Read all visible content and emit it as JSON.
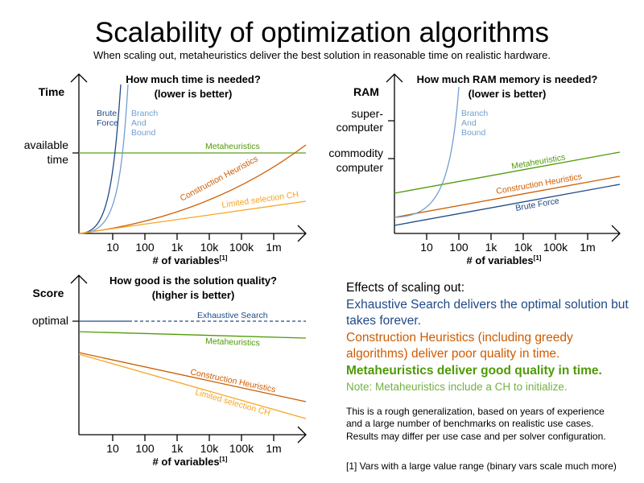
{
  "title": "Scalability of optimization algorithms",
  "subtitle": "When scaling out, metaheuristics deliver the best solution in reasonable time on realistic hardware.",
  "colors": {
    "exhaustive": "#204a87",
    "branch_and_bound": "#729fcf",
    "metaheuristics": "#4e9a06",
    "construction": "#ce5c00",
    "limited": "#f5a623"
  },
  "x_ticks": [
    "10",
    "100",
    "1k",
    "10k",
    "100k",
    "1m"
  ],
  "x_label": "# of variables",
  "x_label_sup": "[1]",
  "time_chart": {
    "title1": "How much time is needed?",
    "title2": "(lower is better)",
    "ylabel": "Time",
    "level1": "available",
    "level2": "time",
    "series": {
      "brute1": "Brute",
      "brute2": "Force",
      "bb1": "Branch",
      "bb2": "And",
      "bb3": "Bound",
      "meta": "Metaheuristics",
      "ch": "Construction Heuristics",
      "lim": "Limited selection CH"
    }
  },
  "ram_chart": {
    "title1": "How much RAM memory is needed?",
    "title2": "(lower is better)",
    "ylabel": "RAM",
    "level_a1": "super-",
    "level_a2": "computer",
    "level_b1": "commodity",
    "level_b2": "computer",
    "series": {
      "bb1": "Branch",
      "bb2": "And",
      "bb3": "Bound",
      "meta": "Metaheuristics",
      "ch": "Construction Heuristics",
      "brute": "Brute Force"
    }
  },
  "score_chart": {
    "title1": "How good is the solution quality?",
    "title2": "(higher is better)",
    "ylabel": "Score",
    "level": "optimal",
    "series": {
      "exh": "Exhaustive Search",
      "meta": "Metaheuristics",
      "ch": "Construction Heuristics",
      "lim": "Limited selection CH"
    }
  },
  "notes": {
    "heading": "Effects of scaling out:",
    "exhaustive": "Exhaustive Search delivers the optimal solution but takes forever.",
    "construction": "Construction Heuristics (including greedy algorithms) deliver poor quality in time.",
    "meta": "Metaheuristics deliver good quality in time.",
    "meta_note": "Note: Metaheuristics include a CH to initialize.",
    "disclaimer1": "This is a rough generalization, based on years of experience",
    "disclaimer2": "and a large number of benchmarks on realistic use cases.",
    "disclaimer3": "Results may differ per use case and per solver configuration.",
    "footnote": "[1] Vars with a large value range (binary vars scale much more)"
  }
}
